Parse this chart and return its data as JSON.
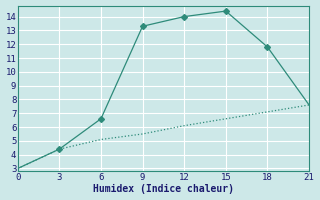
{
  "xlabel": "Humidex (Indice chaleur)",
  "line1_x": [
    0,
    3,
    6,
    9,
    12,
    15,
    18,
    21
  ],
  "line1_y": [
    3.0,
    4.4,
    6.6,
    13.3,
    14.0,
    14.4,
    11.8,
    7.6
  ],
  "line2_x": [
    0,
    3,
    6,
    9,
    12,
    15,
    18,
    21
  ],
  "line2_y": [
    3.0,
    4.4,
    5.1,
    5.5,
    6.1,
    6.6,
    7.1,
    7.6
  ],
  "line1_marker_x": [
    3,
    6,
    9,
    12,
    15,
    18
  ],
  "line1_marker_y": [
    4.4,
    6.6,
    13.3,
    14.0,
    14.4,
    11.8
  ],
  "line_color": "#2e8b7a",
  "bg_color": "#cde8e8",
  "grid_color": "#b8d8d8",
  "xlim": [
    0,
    21
  ],
  "ylim": [
    2.8,
    14.8
  ],
  "xticks": [
    0,
    3,
    6,
    9,
    12,
    15,
    18,
    21
  ],
  "yticks": [
    3,
    4,
    5,
    6,
    7,
    8,
    9,
    10,
    11,
    12,
    13,
    14
  ],
  "xlabel_fontsize": 7,
  "tick_fontsize": 6.5
}
